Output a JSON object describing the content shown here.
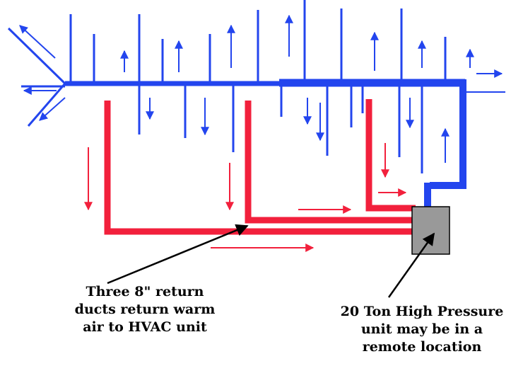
{
  "labels": {
    "return_ducts": [
      "Three 8\" return",
      "ducts return warm",
      "air to HVAC unit"
    ],
    "hvac_unit": [
      "20 Ton High Pressure",
      "unit may be in a",
      "remote location"
    ]
  },
  "colors": {
    "supply_duct": "#2345ee",
    "return_duct": "#f2203c",
    "hvac_unit_fill": "#999999",
    "pointer_line": "#000000"
  },
  "icons": [
    "arrow-up-icon",
    "arrow-down-icon",
    "arrow-right-icon",
    "arrow-left-icon"
  ]
}
